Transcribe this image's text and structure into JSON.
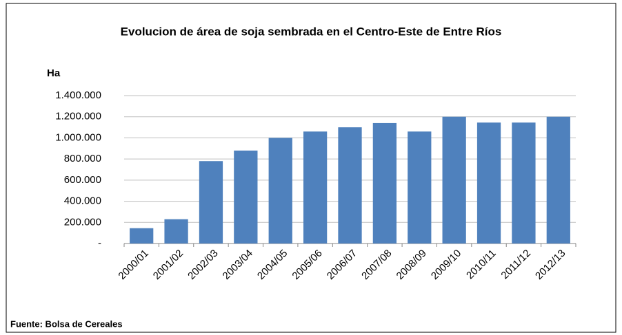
{
  "chart_data": {
    "type": "bar",
    "title": "Evolucion de área de soja sembrada en el Centro-Este de Entre Ríos",
    "y_label": "Ha",
    "source": "Fuente: Bolsa de Cereales",
    "categories": [
      "2000/01",
      "2001/02",
      "2002/03",
      "2003/04",
      "2004/05",
      "2005/06",
      "2006/07",
      "2007/08",
      "2008/09",
      "2009/10",
      "2010/11",
      "2011/12",
      "2012/13"
    ],
    "values": [
      145000,
      230000,
      780000,
      880000,
      1000000,
      1060000,
      1100000,
      1140000,
      1060000,
      1200000,
      1145000,
      1145000,
      1200000
    ],
    "color": "#4f81bd",
    "ylim": [
      0,
      1400000
    ],
    "yticks": [
      {
        "value": 0,
        "label": "-"
      },
      {
        "value": 200000,
        "label": "200.000"
      },
      {
        "value": 400000,
        "label": "400.000"
      },
      {
        "value": 600000,
        "label": "600.000"
      },
      {
        "value": 800000,
        "label": "800.000"
      },
      {
        "value": 1000000,
        "label": "1.000.000"
      },
      {
        "value": 1200000,
        "label": "1.200.000"
      },
      {
        "value": 1400000,
        "label": "1.400.000"
      }
    ],
    "grid": true
  }
}
